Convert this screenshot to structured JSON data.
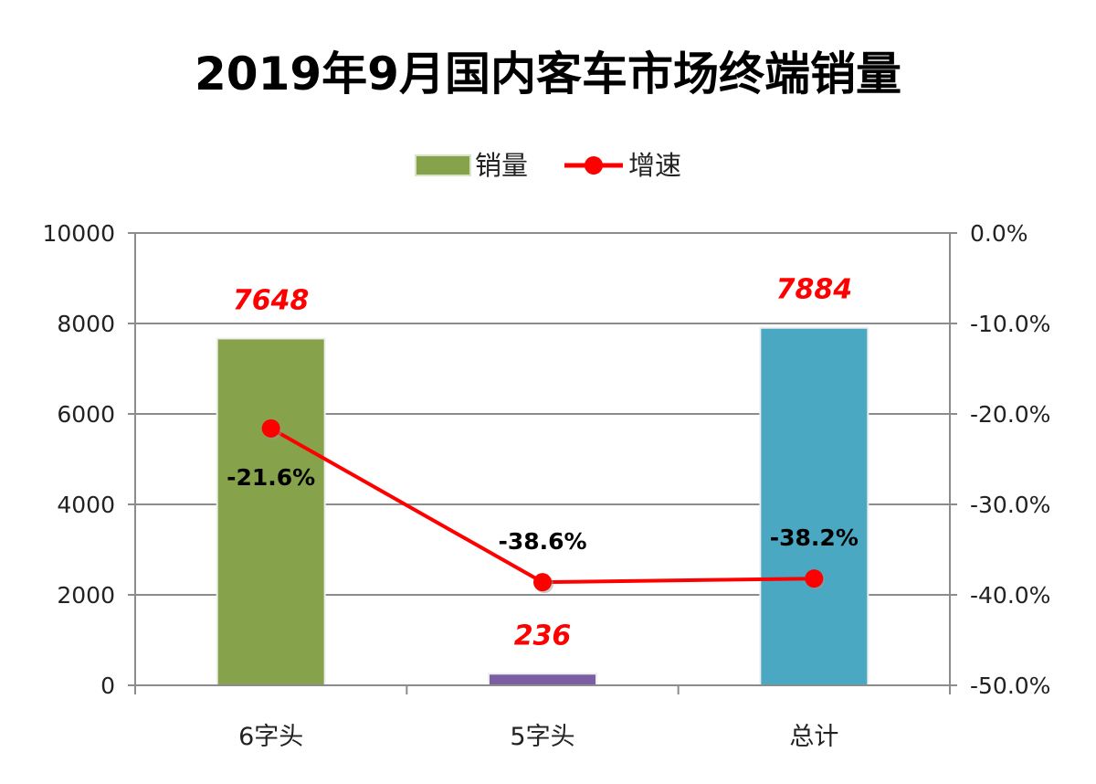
{
  "chart_data": {
    "type": "bar",
    "title": "2019年9月国内客车市场终端销量",
    "categories": [
      "6字头",
      "5字头",
      "总计"
    ],
    "series": [
      {
        "name": "销量",
        "type": "bar",
        "axis": "left",
        "values": [
          7648,
          236,
          7884
        ],
        "colors": [
          "#86a24b",
          "#7c5ea4",
          "#4aa8c3"
        ],
        "data_labels": [
          "7648",
          "236",
          "7884"
        ]
      },
      {
        "name": "增速",
        "type": "line",
        "axis": "right",
        "values": [
          -21.6,
          -38.6,
          -38.2
        ],
        "color": "#ff0000",
        "data_labels": [
          "-21.6%",
          "-38.6%",
          "-38.2%"
        ]
      }
    ],
    "y_left": {
      "lim": [
        0,
        10000
      ],
      "ticks": [
        "0",
        "2000",
        "4000",
        "6000",
        "8000",
        "10000"
      ]
    },
    "y_right": {
      "lim": [
        -50,
        0
      ],
      "ticks": [
        "-50.0%",
        "-40.0%",
        "-30.0%",
        "-20.0%",
        "-10.0%",
        "0.0%"
      ]
    },
    "grid": true,
    "legend_placement": "top-center",
    "value_label_color": "#ff0000"
  }
}
